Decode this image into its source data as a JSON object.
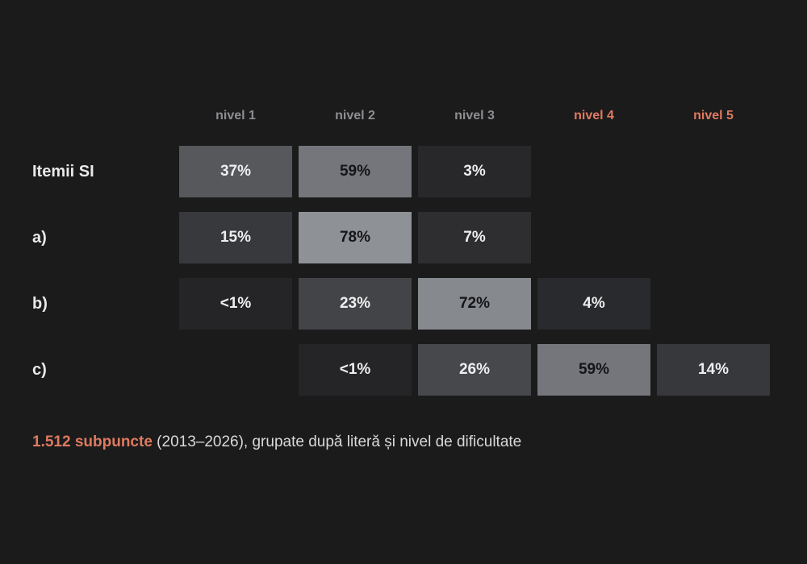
{
  "chart_data": {
    "type": "heatmap",
    "columns": [
      {
        "label": "nivel 1",
        "emphasis": false
      },
      {
        "label": "nivel 2",
        "emphasis": false
      },
      {
        "label": "nivel 3",
        "emphasis": false
      },
      {
        "label": "nivel 4",
        "emphasis": true
      },
      {
        "label": "nivel 5",
        "emphasis": true
      }
    ],
    "rows": [
      {
        "label": "Itemii SI",
        "values": [
          37,
          59,
          3,
          null,
          null
        ],
        "display": [
          "37%",
          "59%",
          "3%",
          null,
          null
        ]
      },
      {
        "label": "a)",
        "values": [
          15,
          78,
          7,
          null,
          null
        ],
        "display": [
          "15%",
          "78%",
          "7%",
          null,
          null
        ]
      },
      {
        "label": "b)",
        "values": [
          0.5,
          23,
          72,
          4,
          null
        ],
        "display": [
          "<1%",
          "23%",
          "72%",
          "4%",
          null
        ]
      },
      {
        "label": "c)",
        "values": [
          null,
          0.5,
          26,
          59,
          14
        ],
        "display": [
          null,
          "<1%",
          "26%",
          "59%",
          "14%"
        ]
      }
    ],
    "value_unit": "%",
    "color_scale": {
      "low": "#242427",
      "high": "#8e9196"
    }
  },
  "caption": {
    "highlight": "1.512 subpuncte",
    "rest": " (2013–2026), grupate după literă și nivel de dificultate"
  },
  "colors": {
    "background": "#1b1b1c",
    "accent": "#e07a5f",
    "header_muted": "#8d8d92",
    "label": "#e9e9ea",
    "text_light": "#eeeeef",
    "text_dark": "#151517"
  }
}
